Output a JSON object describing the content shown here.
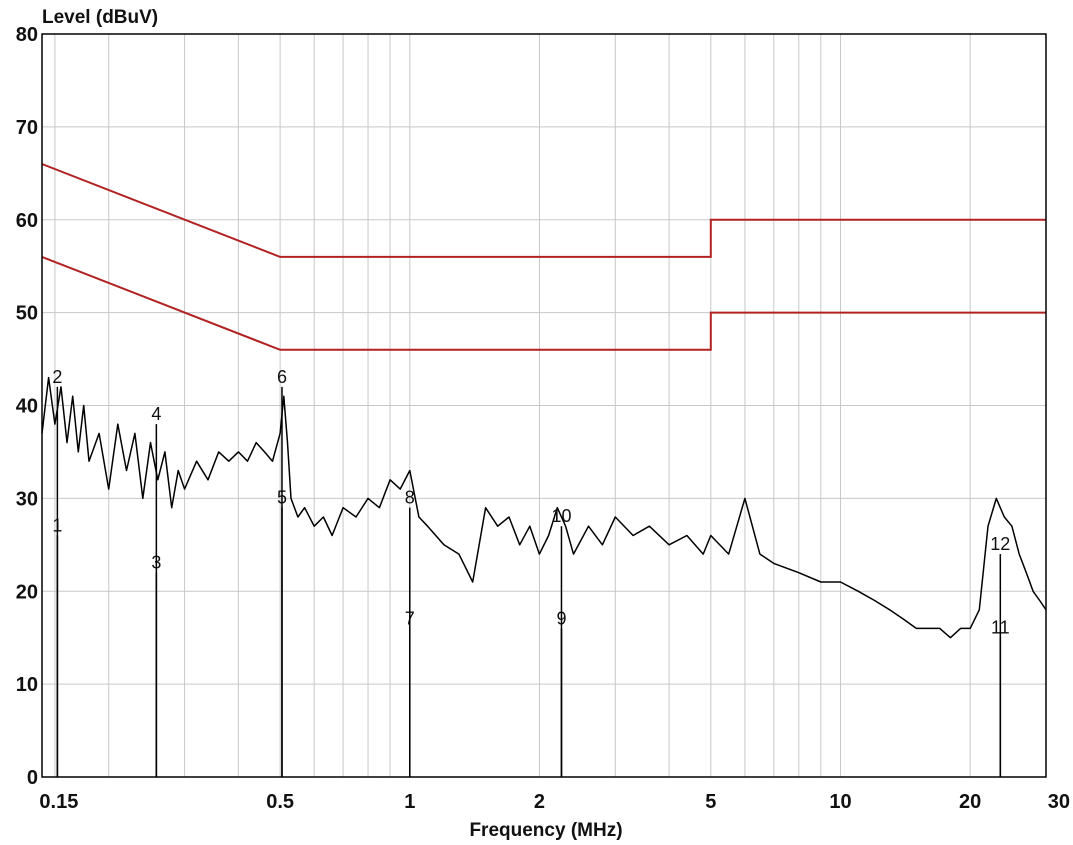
{
  "chart_data": {
    "type": "line",
    "ylabel": "Level (dBuV)",
    "xlabel": "Frequency (MHz)",
    "x_scale": "log",
    "xlim": [
      0.14,
      30
    ],
    "ylim": [
      0,
      80
    ],
    "x_ticks": [
      0.15,
      0.5,
      1,
      2,
      5,
      10,
      20,
      30
    ],
    "x_tick_labels": [
      "0.15",
      "0.5",
      "1",
      "2",
      "5",
      "10",
      "20",
      "30"
    ],
    "y_ticks": [
      0,
      10,
      20,
      30,
      40,
      50,
      60,
      70,
      80
    ],
    "y_tick_labels": [
      "0",
      "10",
      "20",
      "30",
      "40",
      "50",
      "60",
      "70",
      "80"
    ],
    "grid": true,
    "colors": {
      "limit": "#b22222",
      "trace": "#000000",
      "grid": "#c8c8c8"
    },
    "limit_lines": [
      {
        "x": [
          0.14,
          0.5,
          0.5,
          5,
          5,
          30
        ],
        "y": [
          66,
          56,
          56,
          56,
          60,
          60
        ]
      },
      {
        "x": [
          0.14,
          0.5,
          0.5,
          5,
          5,
          30
        ],
        "y": [
          56,
          46,
          46,
          46,
          50,
          50
        ]
      }
    ],
    "trace": {
      "x": [
        0.14,
        0.145,
        0.15,
        0.155,
        0.16,
        0.165,
        0.17,
        0.175,
        0.18,
        0.19,
        0.2,
        0.21,
        0.22,
        0.23,
        0.24,
        0.25,
        0.26,
        0.27,
        0.28,
        0.29,
        0.3,
        0.32,
        0.34,
        0.36,
        0.38,
        0.4,
        0.42,
        0.44,
        0.46,
        0.48,
        0.5,
        0.51,
        0.52,
        0.53,
        0.55,
        0.57,
        0.6,
        0.63,
        0.66,
        0.7,
        0.75,
        0.8,
        0.85,
        0.9,
        0.95,
        1.0,
        1.05,
        1.1,
        1.2,
        1.3,
        1.4,
        1.5,
        1.6,
        1.7,
        1.8,
        1.9,
        2.0,
        2.1,
        2.2,
        2.3,
        2.4,
        2.6,
        2.8,
        3.0,
        3.3,
        3.6,
        4.0,
        4.4,
        4.8,
        5.0,
        5.5,
        6.0,
        6.5,
        7.0,
        8.0,
        9.0,
        10.0,
        11.0,
        12.0,
        13.0,
        14.0,
        15.0,
        16.0,
        17.0,
        18.0,
        19.0,
        20.0,
        21.0,
        22.0,
        23.0,
        24.0,
        25.0,
        26.0,
        27.0,
        28.0,
        29.0,
        30.0
      ],
      "y": [
        37,
        43,
        38,
        42,
        36,
        41,
        35,
        40,
        34,
        37,
        31,
        38,
        33,
        37,
        30,
        36,
        32,
        35,
        29,
        33,
        31,
        34,
        32,
        35,
        34,
        35,
        34,
        36,
        35,
        34,
        37,
        41,
        36,
        30,
        28,
        29,
        27,
        28,
        26,
        29,
        28,
        30,
        29,
        32,
        31,
        33,
        28,
        27,
        25,
        24,
        21,
        29,
        27,
        28,
        25,
        27,
        24,
        26,
        29,
        27,
        24,
        27,
        25,
        28,
        26,
        27,
        25,
        26,
        24,
        26,
        24,
        30,
        24,
        23,
        22,
        21,
        21,
        20,
        19,
        18,
        17,
        16,
        16,
        16,
        15,
        16,
        16,
        18,
        27,
        30,
        28,
        27,
        24,
        22,
        20,
        19,
        18
      ]
    },
    "markers": [
      {
        "label": "1",
        "x": 0.152,
        "y": 26
      },
      {
        "label": "2",
        "x": 0.152,
        "y": 42
      },
      {
        "label": "3",
        "x": 0.258,
        "y": 22
      },
      {
        "label": "4",
        "x": 0.258,
        "y": 38
      },
      {
        "label": "5",
        "x": 0.505,
        "y": 29
      },
      {
        "label": "6",
        "x": 0.505,
        "y": 42
      },
      {
        "label": "7",
        "x": 1.0,
        "y": 16
      },
      {
        "label": "8",
        "x": 1.0,
        "y": 29
      },
      {
        "label": "9",
        "x": 2.25,
        "y": 16
      },
      {
        "label": "10",
        "x": 2.25,
        "y": 27
      },
      {
        "label": "11",
        "x": 23.5,
        "y": 15
      },
      {
        "label": "12",
        "x": 23.5,
        "y": 24
      }
    ]
  }
}
